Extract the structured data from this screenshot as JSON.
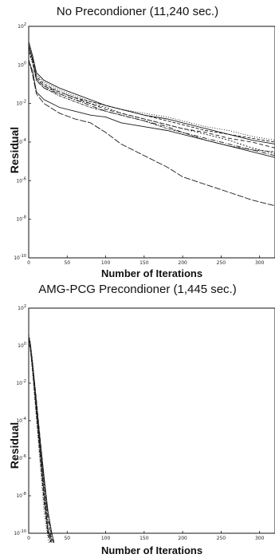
{
  "chart_data": [
    {
      "type": "line",
      "title": "No Precondioner (11,240 sec.)",
      "xlabel": "Number of Iterations",
      "ylabel": "Residual",
      "yscale": "log",
      "xlim": [
        0,
        320
      ],
      "ylim_exp": [
        -10,
        2
      ],
      "x_ticks": [
        "0",
        "50",
        "100",
        "150",
        "200",
        "250",
        "300"
      ],
      "y_ticks": [
        "10^-10",
        "10^-8",
        "10^-6",
        "10^-4",
        "10^-2",
        "10^0",
        "10^2"
      ],
      "series": [
        {
          "x": [
            0,
            5,
            10,
            20,
            40,
            60,
            80,
            100,
            120,
            150,
            180,
            200,
            230,
            260,
            290,
            320
          ],
          "logy": [
            0.2,
            -0.3,
            -1.4,
            -1.8,
            -2.2,
            -2.4,
            -2.6,
            -2.7,
            -3.0,
            -3.2,
            -3.4,
            -3.6,
            -3.9,
            -4.2,
            -4.5,
            -4.8
          ]
        },
        {
          "x": [
            0,
            5,
            10,
            20,
            40,
            60,
            80,
            100,
            120,
            150,
            180,
            200,
            230,
            260,
            290,
            320
          ],
          "logy": [
            1.0,
            0.3,
            -0.6,
            -1.0,
            -1.4,
            -1.7,
            -1.9,
            -2.1,
            -2.3,
            -2.6,
            -2.9,
            -3.1,
            -3.4,
            -3.6,
            -3.8,
            -4.0
          ]
        },
        {
          "x": [
            0,
            5,
            10,
            20,
            40,
            60,
            80,
            100,
            120,
            150,
            180,
            200,
            230,
            260,
            290,
            320
          ],
          "logy": [
            0.8,
            0.2,
            -0.7,
            -1.1,
            -1.5,
            -1.8,
            -2.0,
            -2.2,
            -2.5,
            -2.8,
            -3.1,
            -3.3,
            -3.6,
            -3.9,
            -4.3,
            -4.6
          ]
        },
        {
          "x": [
            0,
            5,
            10,
            20,
            40,
            60,
            80,
            100,
            120,
            150,
            180,
            200,
            230,
            260,
            290,
            320
          ],
          "logy": [
            0.9,
            0.3,
            -0.8,
            -1.2,
            -1.5,
            -1.8,
            -2.1,
            -2.4,
            -2.6,
            -2.9,
            -3.2,
            -3.5,
            -3.8,
            -4.1,
            -4.4,
            -4.7
          ]
        },
        {
          "x": [
            0,
            5,
            10,
            20,
            40,
            60,
            80,
            100,
            120,
            150,
            180,
            200,
            230,
            260,
            290,
            320
          ],
          "logy": [
            1.1,
            0.4,
            -0.5,
            -0.9,
            -1.3,
            -1.6,
            -1.9,
            -2.1,
            -2.3,
            -2.5,
            -2.7,
            -2.9,
            -3.2,
            -3.4,
            -3.7,
            -3.9
          ]
        },
        {
          "x": [
            0,
            5,
            10,
            20,
            40,
            60,
            80,
            100,
            120,
            150,
            180,
            200,
            230,
            260,
            290,
            320
          ],
          "logy": [
            1.0,
            0.3,
            -0.7,
            -1.1,
            -1.4,
            -1.7,
            -2.0,
            -2.3,
            -2.5,
            -2.8,
            -3.1,
            -3.3,
            -3.5,
            -3.8,
            -4.0,
            -4.3
          ]
        },
        {
          "x": [
            0,
            5,
            10,
            20,
            40,
            60,
            80,
            100,
            120,
            150,
            180,
            200,
            230,
            260,
            290,
            320
          ],
          "logy": [
            0.7,
            0.1,
            -0.8,
            -1.2,
            -1.6,
            -1.9,
            -2.2,
            -2.4,
            -2.6,
            -2.9,
            -3.3,
            -3.5,
            -3.9,
            -4.2,
            -4.4,
            -4.5
          ]
        },
        {
          "x": [
            0,
            5,
            10,
            20,
            40,
            60,
            80,
            100,
            120,
            150,
            180,
            200,
            230,
            260,
            290,
            320
          ],
          "logy": [
            1.2,
            0.5,
            -0.4,
            -0.8,
            -1.2,
            -1.5,
            -1.8,
            -2.1,
            -2.3,
            -2.6,
            -2.8,
            -3.0,
            -3.3,
            -3.6,
            -3.9,
            -4.1
          ]
        },
        {
          "x": [
            0,
            5,
            10,
            20,
            40,
            60,
            80,
            100,
            120,
            150,
            180,
            200,
            230,
            260,
            290,
            320
          ],
          "logy": [
            0.3,
            -0.5,
            -1.5,
            -2.0,
            -2.5,
            -2.8,
            -3.0,
            -3.5,
            -4.1,
            -4.7,
            -5.3,
            -5.8,
            -6.2,
            -6.6,
            -7.0,
            -7.3
          ]
        }
      ]
    },
    {
      "type": "line",
      "title": "AMG-PCG Precondioner (1,445 sec.)",
      "xlabel": "Number of Iterations",
      "ylabel": "Residual",
      "yscale": "log",
      "xlim": [
        0,
        320
      ],
      "ylim_exp": [
        -10,
        2
      ],
      "x_ticks": [
        "0",
        "50",
        "100",
        "150",
        "200",
        "250",
        "300"
      ],
      "y_ticks": [
        "10^-10",
        "10^-8",
        "10^-6",
        "10^-4",
        "10^-2",
        "10^0",
        "10^2"
      ],
      "series": [
        {
          "x": [
            0,
            2,
            5,
            10,
            15,
            20,
            25,
            30
          ],
          "logy": [
            0.5,
            0.1,
            -1.0,
            -3.3,
            -5.6,
            -7.9,
            -9.8,
            -10.4
          ]
        },
        {
          "x": [
            0,
            2,
            5,
            10,
            15,
            20,
            25,
            30
          ],
          "logy": [
            0.3,
            -0.1,
            -1.3,
            -3.7,
            -6.0,
            -8.3,
            -10.1,
            -10.5
          ]
        },
        {
          "x": [
            0,
            2,
            5,
            10,
            15,
            20,
            25,
            28
          ],
          "logy": [
            0.6,
            0.2,
            -0.8,
            -3.0,
            -5.2,
            -7.4,
            -9.6,
            -10.5
          ]
        },
        {
          "x": [
            0,
            2,
            5,
            10,
            15,
            20,
            25,
            30,
            32
          ],
          "logy": [
            0.4,
            0.0,
            -1.1,
            -3.2,
            -5.3,
            -7.3,
            -9.1,
            -10.2,
            -10.5
          ]
        },
        {
          "x": [
            0,
            2,
            5,
            10,
            15,
            20,
            26
          ],
          "logy": [
            0.2,
            -0.2,
            -1.4,
            -3.9,
            -6.4,
            -8.9,
            -10.5
          ]
        },
        {
          "x": [
            0,
            2,
            5,
            10,
            15,
            20,
            25,
            30
          ],
          "logy": [
            0.5,
            0.1,
            -0.9,
            -2.9,
            -5.0,
            -7.1,
            -9.2,
            -10.4
          ]
        },
        {
          "x": [
            0,
            2,
            5,
            10,
            15,
            20,
            25,
            29
          ],
          "logy": [
            0.3,
            0.0,
            -1.2,
            -3.5,
            -5.8,
            -8.0,
            -9.9,
            -10.5
          ]
        },
        {
          "x": [
            0,
            2,
            5,
            10,
            15,
            20,
            25,
            30,
            33
          ],
          "logy": [
            0.4,
            0.1,
            -1.0,
            -3.1,
            -5.1,
            -7.0,
            -8.8,
            -10.0,
            -10.5
          ]
        }
      ]
    }
  ]
}
